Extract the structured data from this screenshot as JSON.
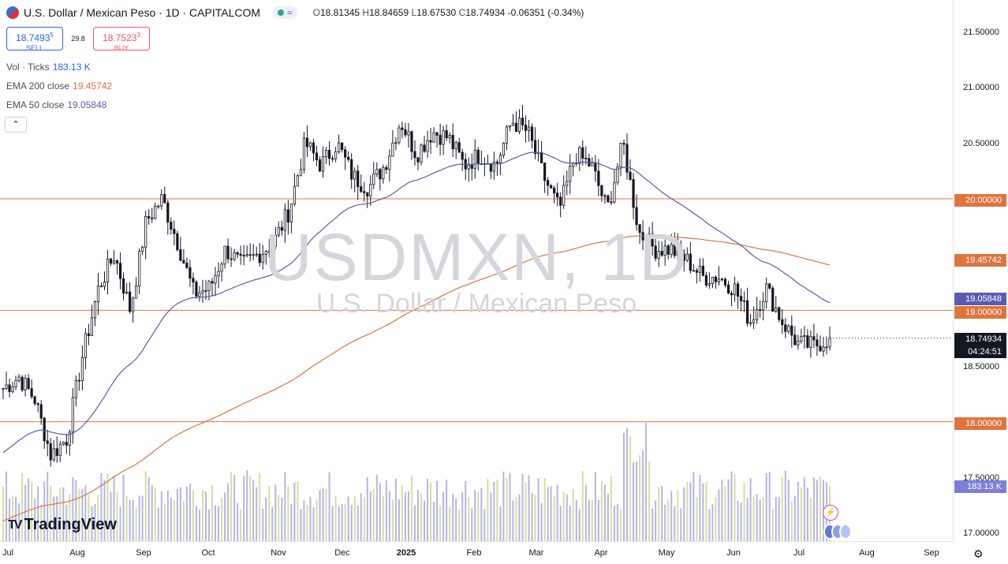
{
  "header": {
    "title": "U.S. Dollar / Mexican Peso · 1D · CAPITALCOM",
    "open_label": "O",
    "open": "18.81345",
    "high_label": "H",
    "high": "18.84659",
    "low_label": "L",
    "low": "18.67530",
    "close_label": "C",
    "close": "18.74934",
    "change": "-0.06351 (-0.34%)"
  },
  "trade": {
    "sell_price": "18.7493",
    "sell_sup": "5",
    "sell_label": "SELL",
    "spread": "29.8",
    "buy_price": "18.7523",
    "buy_sup": "3",
    "buy_label": "BUY"
  },
  "indicators": {
    "vol_label": "Vol · Ticks",
    "vol_value": "183.13 K",
    "ema200_label": "EMA 200 close",
    "ema200_value": "19.45742",
    "ema50_label": "EMA 50 close",
    "ema50_value": "19.05848"
  },
  "watermark": {
    "symbol": "USDMXN, 1D",
    "name": "U.S. Dollar / Mexican Peso"
  },
  "price_axis": [
    "21.50000",
    "21.00000",
    "20.50000",
    "20.00000",
    "19.50000",
    "19.00000",
    "18.50000",
    "18.00000",
    "17.50000",
    "17.00000"
  ],
  "price_tags": {
    "level_20": "20.00000",
    "ema200": "19.45742",
    "ema50": "19.05848",
    "level_19": "19.00000",
    "current": "18.74934",
    "countdown": "04:24:51",
    "level_18": "18.00000",
    "volume": "183.13 K"
  },
  "time_axis": [
    "Jul",
    "Aug",
    "Sep",
    "Oct",
    "Nov",
    "Dec",
    "2025",
    "Feb",
    "Mar",
    "Apr",
    "May",
    "Jun",
    "Jul",
    "Aug",
    "Sep"
  ],
  "logo": "TradingView",
  "colors": {
    "up": "#131722",
    "down": "#131722",
    "ema50": "#5b5bb5",
    "ema200": "#e0743e",
    "hline": "#e0743e",
    "vol_a": "#a8a8e0",
    "vol_b": "#cfd88a",
    "current": "#131722"
  },
  "chart_data": {
    "type": "candlestick",
    "y_range": [
      17.0,
      21.5
    ],
    "horizontal_lines": [
      20.0,
      19.0,
      18.0
    ],
    "series": [
      {
        "name": "EMA 200 close",
        "last": 19.45742
      },
      {
        "name": "EMA 50 close",
        "last": 19.05848
      }
    ],
    "close_path": [
      18.3,
      18.4,
      18.2,
      17.7,
      17.85,
      18.6,
      19.2,
      19.5,
      19.0,
      19.8,
      20.0,
      19.6,
      19.15,
      19.2,
      19.55,
      19.4,
      19.5,
      19.6,
      19.9,
      20.5,
      20.3,
      20.5,
      20.2,
      20.1,
      20.3,
      20.7,
      20.4,
      20.6,
      20.55,
      20.3,
      20.4,
      20.3,
      20.7,
      20.6,
      20.2,
      19.9,
      20.4,
      20.3,
      19.9,
      20.5,
      19.7,
      19.55,
      19.55,
      19.45,
      19.3,
      19.3,
      19.2,
      18.9,
      19.2,
      18.9,
      18.7,
      18.68,
      18.75
    ],
    "last_close": 18.74934
  }
}
